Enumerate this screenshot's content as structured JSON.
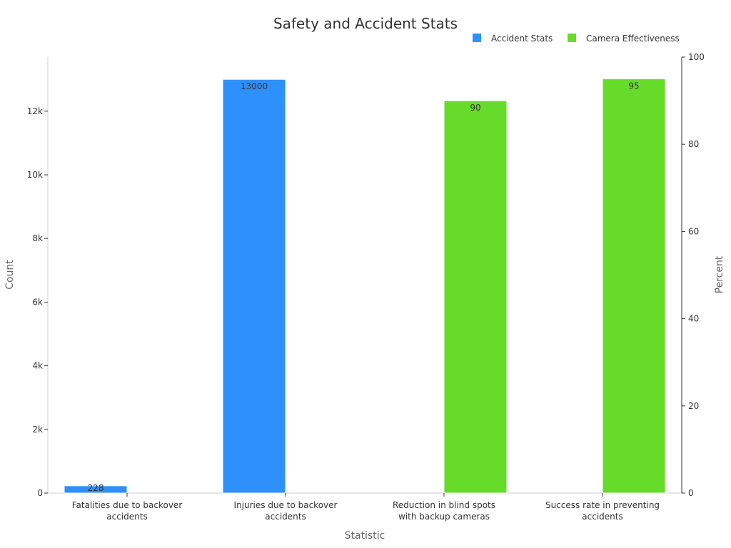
{
  "chart_data": {
    "type": "bar",
    "title": "Safety and Accident Stats",
    "xlabel": "Statistic",
    "ylabel": "Count",
    "y2label": "Percent",
    "categories": [
      [
        "Fatalities due to backover",
        "accidents"
      ],
      [
        "Injuries due to backover",
        "accidents"
      ],
      [
        "Reduction in blind spots",
        "with backup cameras"
      ],
      [
        "Success rate in preventing",
        "accidents"
      ]
    ],
    "ylim": [
      0,
      13700
    ],
    "y2lim": [
      0,
      100
    ],
    "yticks": [
      {
        "value": 0,
        "label": "0"
      },
      {
        "value": 2000,
        "label": "2k"
      },
      {
        "value": 4000,
        "label": "4k"
      },
      {
        "value": 6000,
        "label": "6k"
      },
      {
        "value": 8000,
        "label": "8k"
      },
      {
        "value": 10000,
        "label": "10k"
      },
      {
        "value": 12000,
        "label": "12k"
      }
    ],
    "y2ticks": [
      {
        "value": 0,
        "label": "0"
      },
      {
        "value": 20,
        "label": "20"
      },
      {
        "value": 40,
        "label": "40"
      },
      {
        "value": 60,
        "label": "60"
      },
      {
        "value": 80,
        "label": "80"
      },
      {
        "value": 100,
        "label": "100"
      }
    ],
    "legend_position": "top-right",
    "grid": false,
    "series": [
      {
        "name": "Accident Stats",
        "axis": "left",
        "color": "#2e90fa",
        "values": [
          228,
          13000,
          null,
          null
        ],
        "labels": [
          "228",
          "13000",
          null,
          null
        ]
      },
      {
        "name": "Camera Effectiveness",
        "axis": "right",
        "color": "#66db2a",
        "values": [
          null,
          null,
          90,
          95
        ],
        "labels": [
          null,
          null,
          "90",
          "95"
        ]
      }
    ]
  }
}
